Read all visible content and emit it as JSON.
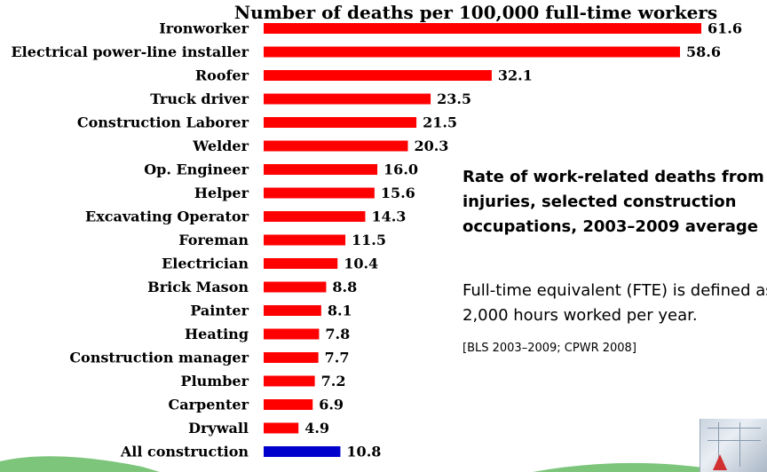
{
  "chart_data": {
    "type": "bar",
    "orientation": "horizontal",
    "title": "Number of deaths per 100,000 full-time workers",
    "categories": [
      "Ironworker",
      "Electrical power-line installer",
      "Roofer",
      "Truck driver",
      "Construction Laborer",
      "Welder",
      "Op. Engineer",
      "Helper",
      "Excavating Operator",
      "Foreman",
      "Electrician",
      "Brick Mason",
      "Painter",
      "Heating",
      "Construction manager",
      "Plumber",
      "Carpenter",
      "Drywall",
      "All construction"
    ],
    "values": [
      61.6,
      58.6,
      32.1,
      23.5,
      21.5,
      20.3,
      16.0,
      15.6,
      14.3,
      11.5,
      10.4,
      8.8,
      8.1,
      7.8,
      7.7,
      7.2,
      6.9,
      4.9,
      10.8
    ],
    "value_labels": [
      "61.6",
      "58.6",
      "32.1",
      "23.5",
      "21.5",
      "20.3",
      "16.0",
      "15.6",
      "14.3",
      "11.5",
      "10.4",
      "8.8",
      "8.1",
      "7.8",
      "7.7",
      "7.2",
      "6.9",
      "4.9",
      "10.8"
    ],
    "xlim": [
      0,
      61.6
    ],
    "grid": false,
    "colors": {
      "bar": "#ff0000",
      "highlight": "#0000cc"
    },
    "highlight_category": "All construction"
  },
  "notes": {
    "heading": "Rate of work-related deaths from injuries, selected construction occupations, 2003–2009 average",
    "definition_line1": "Full-time equivalent (FTE) is defined as",
    "definition_line2": "2,000 hours worked per year.",
    "source": "[BLS 2003–2009; CPWR 2008]"
  }
}
